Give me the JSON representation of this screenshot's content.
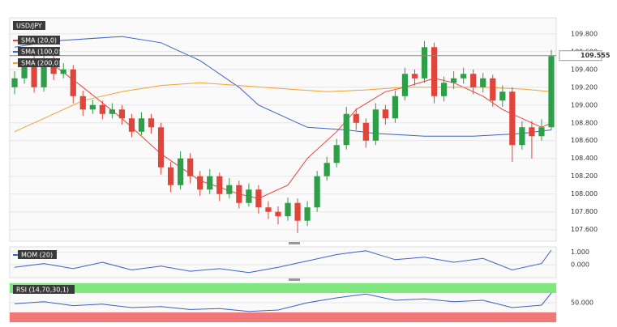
{
  "chart_data": [
    {
      "type": "candlestick",
      "title": "USD/JPY",
      "open": [
        109.2,
        109.3,
        109.45,
        109.2,
        109.5,
        109.35,
        109.4,
        109.1,
        108.95,
        109.0,
        108.9,
        108.95,
        108.85,
        108.7,
        108.85,
        108.75,
        108.3,
        108.1,
        108.4,
        108.2,
        108.05,
        108.2,
        108.0,
        108.1,
        107.9,
        108.05,
        107.85,
        107.8,
        107.75,
        107.9,
        107.7,
        107.85,
        108.2,
        108.35,
        108.55,
        108.9,
        108.8,
        108.6,
        108.95,
        108.85,
        109.1,
        109.35,
        109.3,
        109.65,
        109.1,
        109.25,
        109.3,
        109.35,
        109.2,
        109.3,
        109.05,
        109.15,
        108.55,
        108.75,
        108.65,
        108.75
      ],
      "high": [
        109.38,
        109.52,
        109.55,
        109.58,
        109.56,
        109.47,
        109.45,
        109.16,
        109.06,
        109.05,
        109.02,
        109.0,
        108.9,
        108.92,
        108.9,
        108.8,
        108.36,
        108.48,
        108.46,
        108.26,
        108.28,
        108.24,
        108.18,
        108.15,
        108.12,
        108.1,
        107.92,
        107.86,
        107.96,
        107.95,
        107.92,
        108.26,
        108.42,
        108.62,
        108.98,
        108.96,
        108.85,
        109.02,
        109.0,
        109.16,
        109.42,
        109.4,
        109.72,
        109.7,
        109.32,
        109.38,
        109.42,
        109.4,
        109.36,
        109.34,
        109.22,
        109.2,
        108.82,
        108.82,
        108.84,
        109.62
      ],
      "low": [
        109.12,
        109.24,
        109.14,
        109.15,
        109.28,
        109.3,
        109.02,
        108.88,
        108.9,
        108.84,
        108.85,
        108.78,
        108.64,
        108.66,
        108.68,
        108.22,
        108.02,
        108.05,
        108.12,
        107.98,
        108.0,
        107.92,
        107.95,
        107.84,
        107.86,
        107.78,
        107.72,
        107.66,
        107.7,
        107.56,
        107.64,
        107.8,
        108.15,
        108.3,
        108.5,
        108.72,
        108.52,
        108.55,
        108.78,
        108.8,
        109.05,
        109.22,
        109.25,
        109.02,
        109.04,
        109.18,
        109.24,
        109.12,
        109.14,
        108.98,
        108.98,
        108.36,
        108.5,
        108.4,
        108.6,
        108.72
      ],
      "close": [
        109.3,
        109.45,
        109.2,
        109.5,
        109.35,
        109.4,
        109.1,
        108.95,
        109.0,
        108.9,
        108.95,
        108.85,
        108.7,
        108.85,
        108.75,
        108.3,
        108.1,
        108.4,
        108.2,
        108.05,
        108.2,
        108.0,
        108.1,
        107.9,
        108.05,
        107.85,
        107.8,
        107.75,
        107.9,
        107.7,
        107.85,
        108.2,
        108.35,
        108.55,
        108.9,
        108.8,
        108.6,
        108.95,
        108.85,
        109.1,
        109.35,
        109.3,
        109.65,
        109.1,
        109.25,
        109.3,
        109.35,
        109.2,
        109.3,
        109.05,
        109.15,
        108.55,
        108.75,
        108.65,
        108.75,
        109.55
      ],
      "up_color": "#2e9e48",
      "down_color": "#e0443a",
      "series": [
        {
          "name": "SMA (20,0)",
          "color": "#e8453c",
          "x": [
            4,
            7,
            11,
            15,
            19,
            23,
            25,
            28,
            30,
            33,
            35,
            38,
            40,
            43,
            45,
            48,
            50,
            53,
            54,
            55
          ],
          "values": [
            109.45,
            109.2,
            108.85,
            108.45,
            108.15,
            108.0,
            107.95,
            108.1,
            108.4,
            108.7,
            108.95,
            109.15,
            109.2,
            109.3,
            109.25,
            109.1,
            108.95,
            108.8,
            108.75,
            108.8
          ]
        },
        {
          "name": "SMA (100,0)",
          "color": "#3a62c4",
          "x": [
            0,
            4,
            11,
            15,
            19,
            23,
            25,
            28,
            30,
            34,
            37,
            42,
            47,
            52,
            55
          ],
          "values": [
            109.65,
            109.72,
            109.77,
            109.7,
            109.5,
            109.2,
            109.0,
            108.85,
            108.75,
            108.72,
            108.68,
            108.65,
            108.65,
            108.68,
            108.72
          ]
        },
        {
          "name": "SMA (200,0)",
          "color": "#f2a12e",
          "x": [
            0,
            4,
            7,
            11,
            15,
            19,
            23,
            28,
            32,
            36,
            40,
            44,
            48,
            52,
            55
          ],
          "values": [
            108.7,
            108.9,
            109.05,
            109.15,
            109.22,
            109.25,
            109.22,
            109.18,
            109.15,
            109.17,
            109.2,
            109.2,
            109.2,
            109.18,
            109.15
          ]
        }
      ],
      "last_price": 109.555,
      "ylim": [
        107.47,
        109.98
      ],
      "yticks": [
        {
          "value": 107.6,
          "label": "107.600"
        },
        {
          "value": 107.8,
          "label": "107.800"
        },
        {
          "value": 108.0,
          "label": "108.000"
        },
        {
          "value": 108.2,
          "label": "108.200"
        },
        {
          "value": 108.4,
          "label": "108.400"
        },
        {
          "value": 108.6,
          "label": "108.600"
        },
        {
          "value": 108.8,
          "label": "108.800"
        },
        {
          "value": 109.0,
          "label": "109.000"
        },
        {
          "value": 109.2,
          "label": "109.200"
        },
        {
          "value": 109.4,
          "label": "109.400"
        },
        {
          "value": 109.6,
          "label": "109.600"
        },
        {
          "value": 109.8,
          "label": "109.800"
        }
      ],
      "grid": true
    },
    {
      "type": "line",
      "title": "MOM (20)",
      "color": "#3a62c4",
      "x": [
        0,
        3,
        6,
        9,
        12,
        15,
        18,
        21,
        24,
        27,
        30,
        33,
        36,
        39,
        42,
        45,
        48,
        51,
        54,
        55
      ],
      "values": [
        -0.2,
        0.1,
        -0.3,
        0.2,
        -0.4,
        -0.1,
        -0.5,
        -0.3,
        -0.6,
        -0.2,
        0.3,
        0.8,
        1.1,
        0.4,
        0.6,
        0.2,
        0.5,
        -0.4,
        0.1,
        1.15
      ],
      "ylim": [
        -1.0,
        1.4
      ],
      "yticks": [
        {
          "value": 1,
          "label": "1.000"
        },
        {
          "value": 0,
          "label": "0.000"
        }
      ],
      "grid": true
    },
    {
      "type": "rsi",
      "title": "RSI (14,70,30,1)",
      "color": "#3a62c4",
      "x": [
        0,
        3,
        6,
        9,
        12,
        15,
        18,
        21,
        24,
        27,
        30,
        33,
        36,
        39,
        42,
        45,
        48,
        51,
        54,
        55
      ],
      "values": [
        48,
        52,
        44,
        47,
        40,
        42,
        36,
        38,
        32,
        35,
        50,
        60,
        68,
        55,
        58,
        52,
        55,
        40,
        45,
        70
      ],
      "upper": 70,
      "lower": 30,
      "upper_color": "#7ee87e",
      "lower_color": "#f07878",
      "ylim": [
        10,
        90
      ],
      "yticks": [
        {
          "value": 50,
          "label": "50.000"
        }
      ],
      "grid": true
    }
  ]
}
